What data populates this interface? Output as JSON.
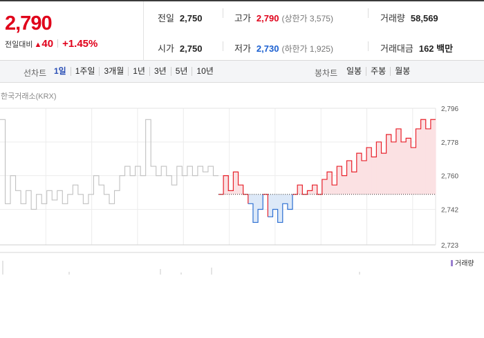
{
  "quote": {
    "price": "2,790",
    "change_label": "전일대비",
    "change_icon": "triangle-up-icon",
    "change_symbol": "▲",
    "change_value": "40",
    "change_rate": "+1.45%",
    "prev_close": {
      "label": "전일",
      "value": "2,750"
    },
    "open": {
      "label": "시가",
      "value": "2,750"
    },
    "high": {
      "label": "고가",
      "value": "2,790",
      "sub": "(상한가 3,575)"
    },
    "low": {
      "label": "저가",
      "value": "2,730",
      "sub": "(하한가 1,925)"
    },
    "volume": {
      "label": "거래량",
      "value": "58,569"
    },
    "amount": {
      "label": "거래대금",
      "value": "162 백만"
    },
    "colors": {
      "up": "#e0001a",
      "down": "#1a5fd0"
    }
  },
  "toolbar": {
    "line_label": "선차트",
    "periods": [
      "1일",
      "1주일",
      "3개월",
      "1년",
      "3년",
      "5년",
      "10년"
    ],
    "active_period": "1일",
    "candle_label": "봉차트",
    "candles": [
      "일봉",
      "주봉",
      "월봉"
    ]
  },
  "chart_data": {
    "type": "line",
    "source": "한국거래소(KRX)",
    "y_ticks": [
      "2,796",
      "2,778",
      "2,760",
      "2,742",
      "2,723"
    ],
    "ylim": [
      2723,
      2796
    ],
    "baseline": 2750,
    "prev_day_color": "#c0c0c0",
    "up_color": "#e8202a",
    "down_color": "#2d6fd2",
    "up_fill": "#fbe1e3",
    "down_fill": "#dde9f8",
    "prev_day_values": [
      2790,
      2745,
      2760,
      2752,
      2745,
      2752,
      2742,
      2750,
      2745,
      2752,
      2747,
      2752,
      2745,
      2750,
      2755,
      2750,
      2745,
      2750,
      2760,
      2755,
      2750,
      2745,
      2752,
      2760,
      2765,
      2760,
      2765,
      2760,
      2790,
      2765,
      2760,
      2765,
      2760,
      2755,
      2765,
      2760,
      2765,
      2760,
      2765,
      2762,
      2765,
      2760
    ],
    "today_values": [
      2750,
      2760,
      2752,
      2762,
      2755,
      2750,
      2745,
      2735,
      2742,
      2750,
      2738,
      2742,
      2735,
      2745,
      2742,
      2750,
      2755,
      2750,
      2752,
      2755,
      2750,
      2758,
      2762,
      2755,
      2765,
      2760,
      2768,
      2762,
      2772,
      2768,
      2775,
      2770,
      2778,
      2772,
      2782,
      2778,
      2785,
      2778,
      2780,
      2775,
      2785,
      2790,
      2785,
      2790
    ],
    "volume_legend": "거래량"
  }
}
